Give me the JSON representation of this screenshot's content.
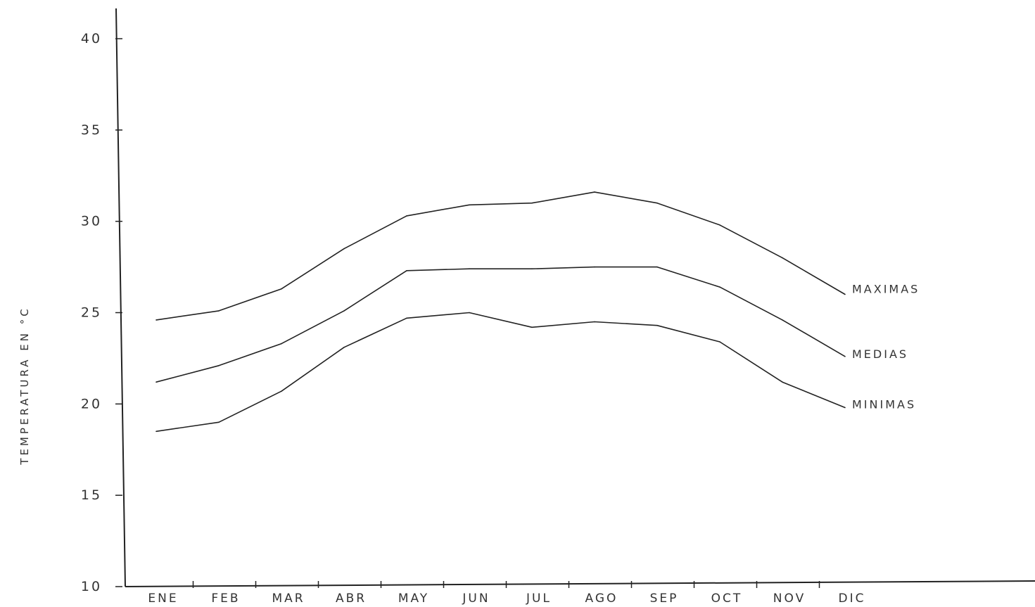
{
  "chart_data": {
    "type": "line",
    "ylabel": "TEMPERATURA EN °C",
    "xlabel": "",
    "title": "",
    "ylim": [
      10,
      40
    ],
    "yticks": [
      "10",
      "15",
      "20",
      "25",
      "30",
      "35",
      "40"
    ],
    "categories": [
      "ENE",
      "FEB",
      "MAR",
      "ABR",
      "MAY",
      "JUN",
      "JUL",
      "AGO",
      "SEP",
      "OCT",
      "NOV",
      "DIC"
    ],
    "series": [
      {
        "name": "MAXIMAS",
        "values": [
          24.6,
          25.1,
          26.3,
          28.5,
          30.3,
          30.9,
          31.0,
          31.6,
          31.0,
          29.8,
          28.0,
          26.0
        ]
      },
      {
        "name": "MEDIAS",
        "values": [
          21.2,
          22.1,
          23.3,
          25.1,
          27.3,
          27.4,
          27.4,
          27.5,
          27.5,
          26.4,
          24.6,
          22.6
        ]
      },
      {
        "name": "MINIMAS",
        "values": [
          18.5,
          19.0,
          20.7,
          23.1,
          24.7,
          25.0,
          24.2,
          24.5,
          24.3,
          23.4,
          21.2,
          19.8
        ]
      }
    ],
    "grid": false,
    "legend": "inline-right"
  }
}
